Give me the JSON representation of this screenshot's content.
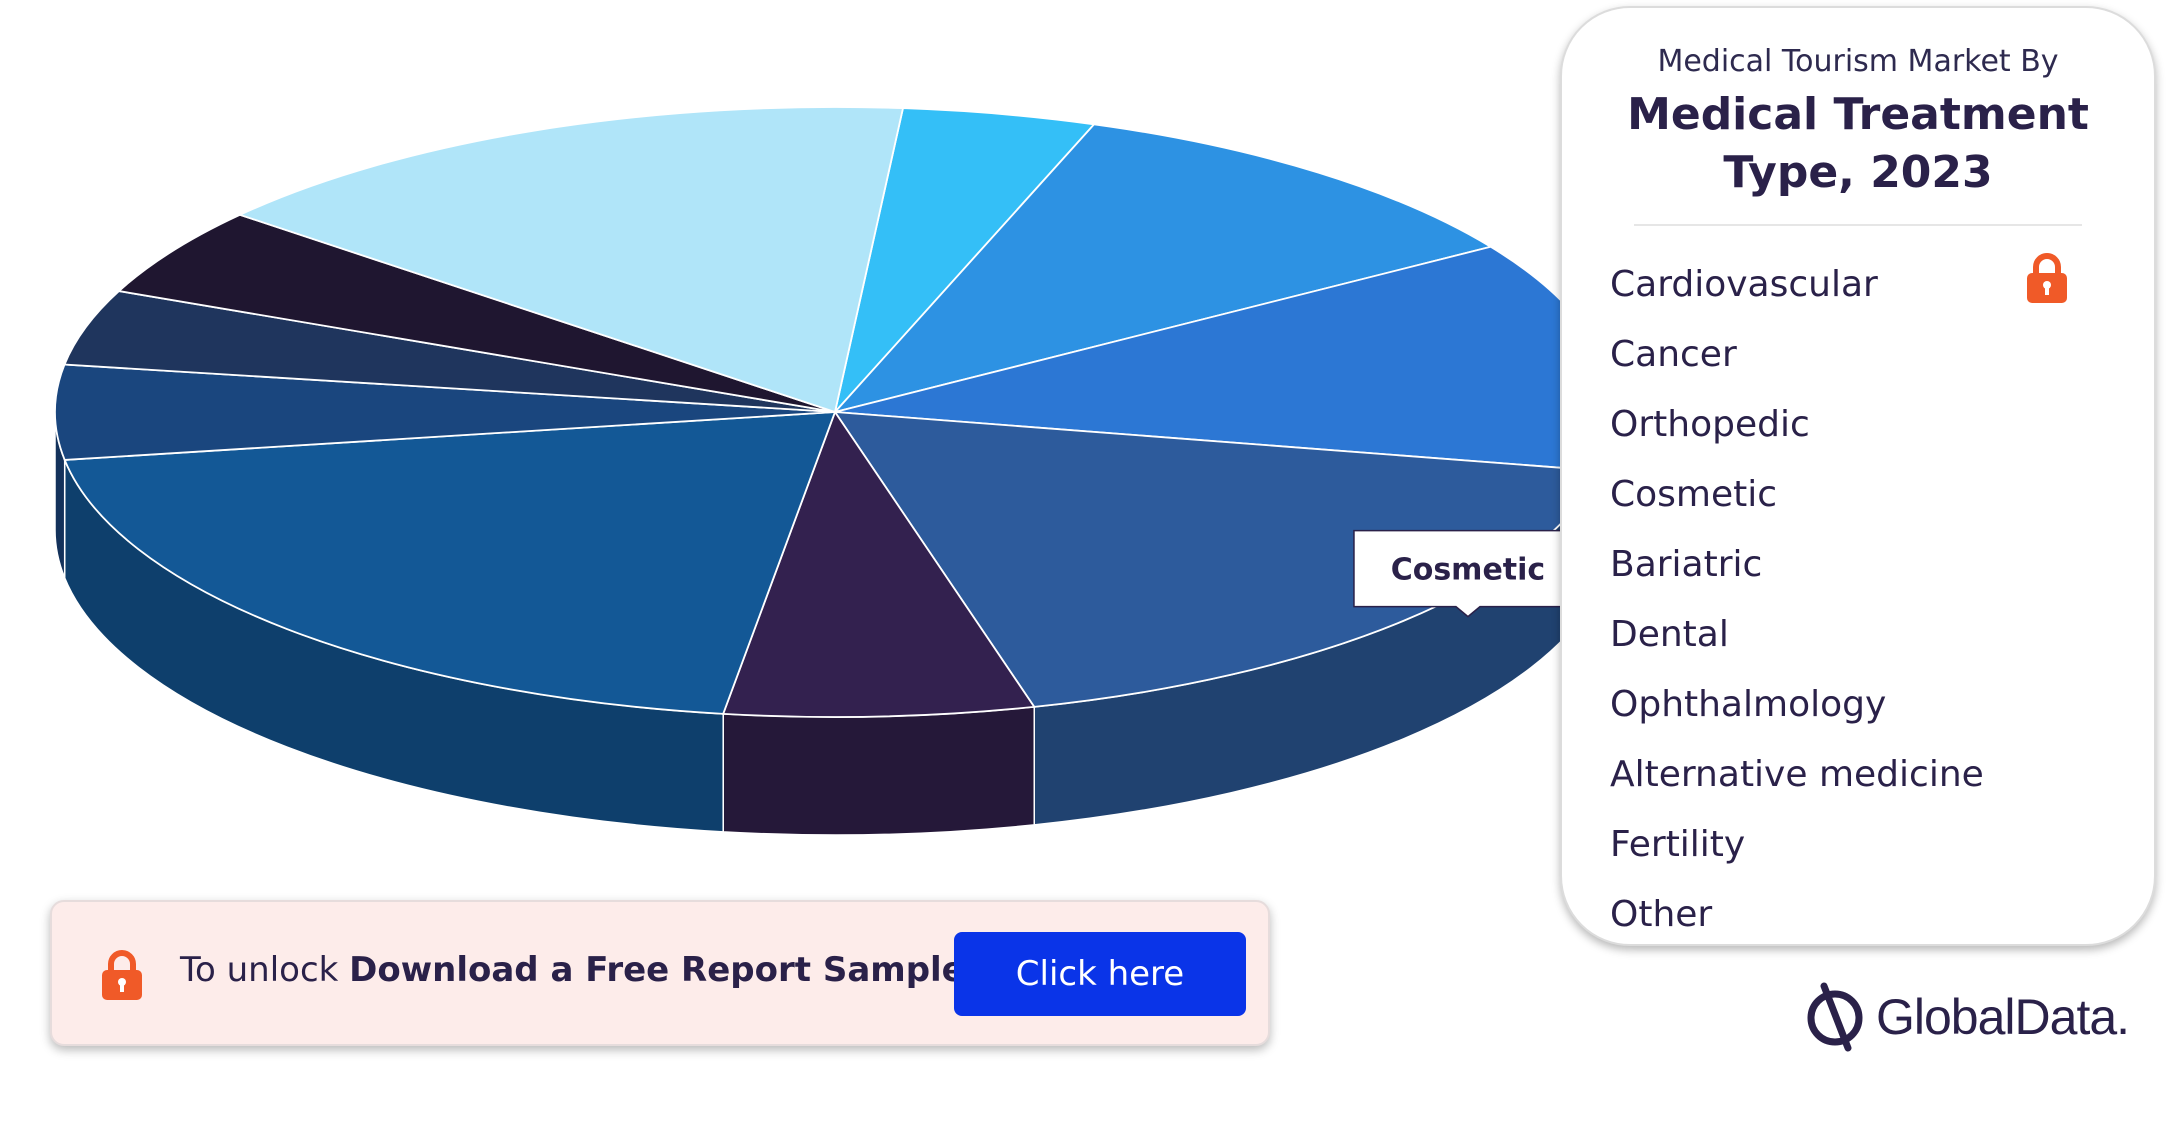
{
  "chart_data": {
    "type": "pie",
    "title": "Medical Treatment Type, 2023",
    "subtitle": "Medical Tourism Market By",
    "legend_position": "right",
    "categories": [
      "Cardiovascular",
      "Cancer",
      "Orthopedic",
      "Cosmetic",
      "Bariatric",
      "Dental",
      "Ophthalmology",
      "Alternative medicine",
      "Fertility",
      "Other"
    ],
    "values": [
      4.0,
      10.5,
      12.2,
      17.8,
      6.4,
      20.2,
      5.0,
      4.0,
      4.7,
      15.2
    ],
    "colors": [
      "#34bff7",
      "#2d92e3",
      "#2c77d4",
      "#2d5b9c",
      "#33214f",
      "#135896",
      "#1a467e",
      "#1f355d",
      "#1f1630",
      "#b0e5f9"
    ],
    "annotations": [
      {
        "category": "Cosmetic",
        "text": "Cosmetic"
      }
    ]
  },
  "legend": {
    "subtitle": "Medical Tourism Market By",
    "title": "Medical Treatment Type, 2023",
    "items": [
      "Cardiovascular",
      "Cancer",
      "Orthopedic",
      "Cosmetic",
      "Bariatric",
      "Dental",
      "Ophthalmology",
      "Alternative medicine",
      "Fertility",
      "Other"
    ],
    "locked_icon": "padlock-icon"
  },
  "banner": {
    "prefix": "To unlock",
    "emphasis": "Download a Free Report Sample",
    "button_label": "Click here",
    "accent_color": "#f05a28",
    "button_color": "#0a34e8"
  },
  "brand": {
    "name": "GlobalData."
  }
}
